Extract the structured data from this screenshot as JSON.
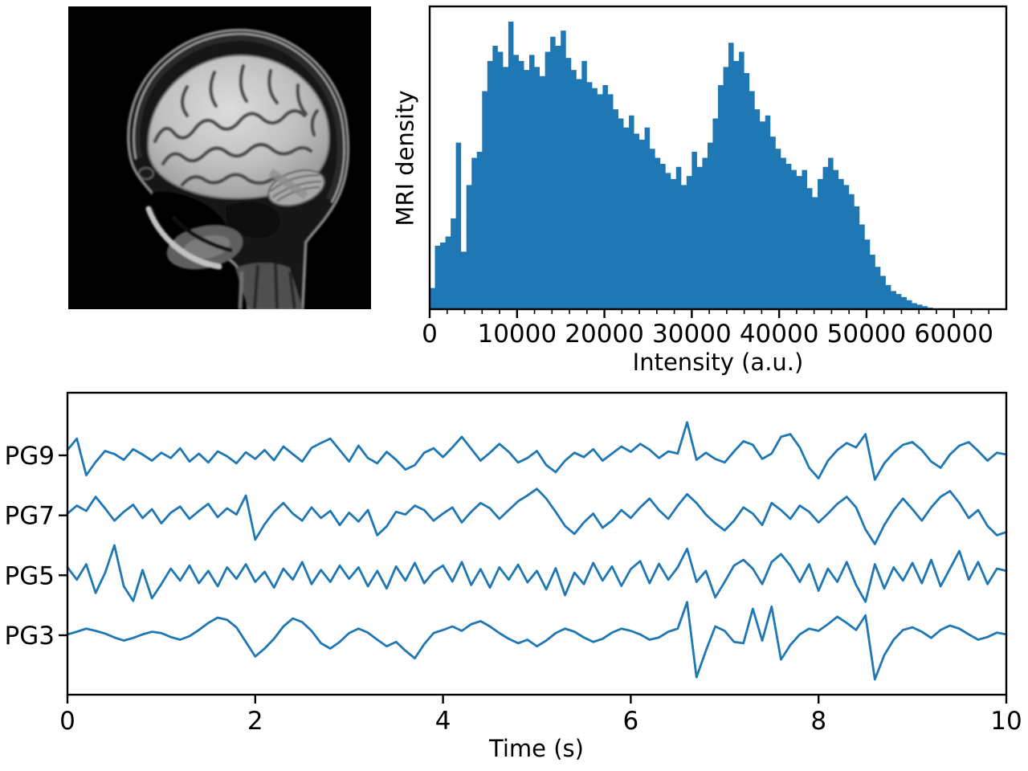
{
  "figure": {
    "background": "#ffffff",
    "text_color": "#000000",
    "accent_blue": "#1f77b4"
  },
  "mri_panel": {
    "icon": "sagittal-brain-mri",
    "background": "#000000"
  },
  "chart_data": [
    {
      "id": "mri_intensity_histogram",
      "type": "bar",
      "title": "",
      "xlabel": "Intensity (a.u.)",
      "ylabel": "MRI density",
      "xlim": [
        0,
        66000
      ],
      "bin_start": 0,
      "bin_width": 600,
      "bar_color": "#1f77b4",
      "grid": false,
      "xticks": [
        0,
        10000,
        20000,
        30000,
        40000,
        50000,
        60000
      ],
      "xtick_labels": [
        "0",
        "10000",
        "20000",
        "30000",
        "40000",
        "50000",
        "60000"
      ],
      "minor_tick_step": 2000,
      "heights_norm": [
        0.07,
        0.21,
        0.22,
        0.24,
        0.3,
        0.55,
        0.19,
        0.41,
        0.5,
        0.52,
        0.72,
        0.82,
        0.87,
        0.85,
        0.8,
        0.95,
        0.84,
        0.82,
        0.79,
        0.84,
        0.8,
        0.77,
        0.85,
        0.9,
        0.87,
        0.92,
        0.83,
        0.79,
        0.76,
        0.82,
        0.75,
        0.73,
        0.71,
        0.74,
        0.71,
        0.66,
        0.63,
        0.6,
        0.64,
        0.58,
        0.56,
        0.6,
        0.53,
        0.5,
        0.48,
        0.45,
        0.43,
        0.47,
        0.41,
        0.44,
        0.52,
        0.47,
        0.5,
        0.55,
        0.63,
        0.74,
        0.8,
        0.88,
        0.82,
        0.85,
        0.78,
        0.72,
        0.66,
        0.62,
        0.64,
        0.57,
        0.53,
        0.5,
        0.48,
        0.46,
        0.44,
        0.46,
        0.4,
        0.37,
        0.43,
        0.47,
        0.5,
        0.46,
        0.43,
        0.41,
        0.38,
        0.34,
        0.28,
        0.23,
        0.18,
        0.14,
        0.11,
        0.08,
        0.06,
        0.05,
        0.04,
        0.03,
        0.02,
        0.015,
        0.01,
        0.005,
        0,
        0,
        0,
        0,
        0,
        0,
        0,
        0,
        0,
        0,
        0,
        0,
        0,
        0
      ]
    },
    {
      "id": "eeg_traces",
      "type": "line",
      "title": "",
      "xlabel": "Time (s)",
      "xlim": [
        0,
        10
      ],
      "xticks": [
        0,
        2,
        4,
        6,
        8,
        10
      ],
      "xtick_labels": [
        "0",
        "2",
        "4",
        "6",
        "8",
        "10"
      ],
      "line_color": "#1f77b4",
      "grid": false,
      "channels": [
        {
          "label": "PG9",
          "values": [
            0.12,
            0.38,
            -0.45,
            -0.15,
            0.1,
            0.03,
            -0.1,
            0.14,
            0.02,
            -0.12,
            0.06,
            -0.06,
            0.16,
            -0.14,
            0.04,
            -0.16,
            0.09,
            -0.02,
            -0.18,
            0.07,
            -0.08,
            0.12,
            -0.11,
            0.2,
            0.03,
            -0.14,
            0.17,
            0.28,
            0.38,
            0.12,
            -0.14,
            0.22,
            -0.06,
            -0.18,
            0.08,
            -0.1,
            -0.32,
            -0.22,
            0.06,
            0.16,
            -0.04,
            0.18,
            0.42,
            0.15,
            -0.12,
            0.06,
            0.26,
            0.08,
            -0.16,
            -0.06,
            0.1,
            -0.22,
            -0.38,
            -0.12,
            0.06,
            -0.04,
            0.14,
            -0.12,
            0.04,
            0.2,
            0.08,
            0.26,
            0.13,
            -0.06,
            0.09,
            0.04,
            0.75,
            -0.1,
            0.06,
            -0.08,
            -0.16,
            0.09,
            0.32,
            0.24,
            -0.08,
            0.04,
            0.42,
            0.48,
            0.18,
            -0.28,
            -0.52,
            -0.12,
            0.12,
            0.28,
            0.18,
            0.48,
            -0.55,
            -0.18,
            0.06,
            0.24,
            0.3,
            0.12,
            -0.14,
            -0.28,
            0.02,
            0.22,
            0.3,
            0.1,
            -0.12,
            0.06,
            0.02
          ]
        },
        {
          "label": "PG7",
          "values": [
            0.04,
            0.22,
            0.1,
            0.42,
            0.16,
            -0.12,
            0.08,
            0.24,
            -0.06,
            0.14,
            -0.18,
            0.06,
            0.2,
            -0.08,
            0.1,
            0.26,
            -0.04,
            0.16,
            0.02,
            0.45,
            -0.55,
            -0.2,
            0.08,
            0.28,
            0.04,
            -0.12,
            0.18,
            -0.06,
            0.1,
            -0.22,
            0.06,
            -0.14,
            0.12,
            -0.45,
            -0.25,
            0.08,
            0.02,
            0.22,
            0.12,
            -0.12,
            0.04,
            0.18,
            -0.16,
            0.08,
            0.28,
            0.16,
            -0.08,
            0.12,
            0.32,
            0.45,
            0.6,
            0.38,
            0.08,
            -0.24,
            -0.42,
            -0.16,
            0.04,
            -0.28,
            -0.12,
            0.12,
            -0.06,
            0.18,
            0.38,
            0.12,
            -0.08,
            0.22,
            0.48,
            0.28,
            0.02,
            -0.18,
            -0.34,
            -0.12,
            0.18,
            0.04,
            -0.22,
            0.28,
            0.12,
            -0.08,
            0.22,
            0.08,
            -0.16,
            0.04,
            0.26,
            0.42,
            0.18,
            -0.32,
            -0.65,
            -0.22,
            0.12,
            0.38,
            0.14,
            -0.12,
            0.18,
            0.42,
            0.55,
            0.28,
            -0.06,
            0.12,
            -0.24,
            -0.45,
            -0.38
          ]
        },
        {
          "label": "PG5",
          "values": [
            0.18,
            -0.1,
            0.25,
            -0.4,
            0.05,
            0.68,
            -0.25,
            -0.58,
            0.12,
            -0.52,
            -0.2,
            0.15,
            -0.12,
            0.22,
            -0.18,
            0.1,
            -0.25,
            0.18,
            -0.08,
            0.25,
            -0.15,
            0.08,
            -0.28,
            0.15,
            -0.1,
            0.3,
            -0.2,
            0.12,
            -0.15,
            0.22,
            -0.08,
            0.18,
            -0.25,
            0.1,
            -0.3,
            0.2,
            -0.12,
            0.28,
            -0.18,
            0.08,
            0.22,
            -0.14,
            0.3,
            -0.22,
            0.14,
            -0.28,
            0.18,
            -0.1,
            0.24,
            -0.16,
            0.1,
            -0.32,
            0.16,
            -0.45,
            0.06,
            -0.2,
            0.28,
            -0.12,
            0.2,
            -0.24,
            0.14,
            0.32,
            -0.18,
            0.26,
            -0.1,
            0.18,
            0.6,
            -0.15,
            0.1,
            -0.5,
            -0.15,
            0.22,
            0.35,
            0.15,
            -0.2,
            0.3,
            0.48,
            0.22,
            -0.15,
            0.25,
            -0.35,
            0.15,
            -0.15,
            0.3,
            -0.22,
            -0.6,
            0.25,
            -0.3,
            0.18,
            -0.12,
            0.28,
            -0.18,
            0.35,
            -0.25,
            0.15,
            0.55,
            -0.1,
            0.3,
            -0.2,
            0.15,
            0.1
          ]
        },
        {
          "label": "PG3",
          "values": [
            0.02,
            0.08,
            0.15,
            0.1,
            0.04,
            -0.05,
            -0.12,
            -0.06,
            0.02,
            0.08,
            0.05,
            -0.04,
            -0.1,
            -0.02,
            0.12,
            0.28,
            0.4,
            0.35,
            0.18,
            -0.15,
            -0.48,
            -0.3,
            -0.08,
            0.2,
            0.38,
            0.3,
            0.1,
            -0.18,
            -0.3,
            -0.15,
            0.05,
            0.15,
            0.06,
            -0.1,
            -0.25,
            -0.15,
            -0.35,
            -0.52,
            -0.2,
            0.05,
            0.12,
            0.2,
            0.1,
            0.25,
            0.32,
            0.2,
            0.05,
            -0.08,
            -0.18,
            -0.1,
            -0.25,
            -0.12,
            0.05,
            0.15,
            0.08,
            -0.05,
            -0.15,
            -0.08,
            0.06,
            0.15,
            0.1,
            0.02,
            -0.1,
            -0.05,
            0.08,
            0.15,
            0.75,
            -0.95,
            -0.35,
            0.2,
            0.1,
            -0.15,
            -0.18,
            0.6,
            -0.12,
            0.65,
            -0.55,
            -0.22,
            0.02,
            0.15,
            0.1,
            0.25,
            0.42,
            0.28,
            0.12,
            0.45,
            -1.0,
            -0.45,
            -0.1,
            0.12,
            0.18,
            0.08,
            -0.06,
            0.12,
            0.22,
            0.15,
            0.02,
            -0.1,
            -0.04,
            0.06,
            0.02
          ]
        }
      ]
    }
  ]
}
